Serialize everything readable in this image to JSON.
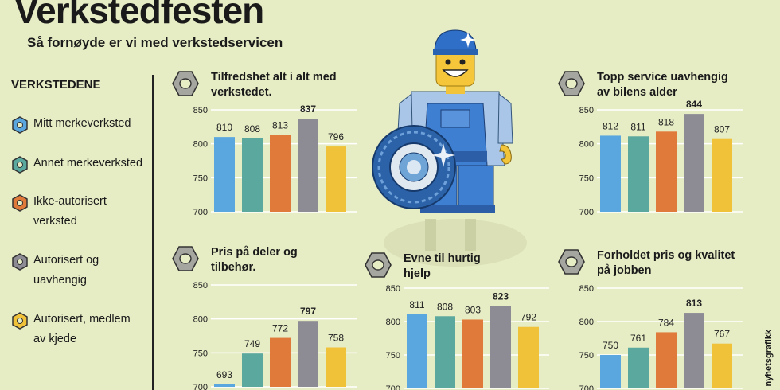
{
  "header": {
    "title": "Verkstedfesten",
    "subtitle": "Så fornøyde er vi med verkstedservicen"
  },
  "legend": {
    "title": "VERKSTEDENE",
    "items": [
      {
        "label": "Mitt merkeverksted",
        "color": "#5aa7e0"
      },
      {
        "label": "Annet merkeverksted",
        "color": "#5aa89e"
      },
      {
        "label": "Ikke-autorisert verksted",
        "color": "#e07a3a"
      },
      {
        "label": "Autorisert og uavhengig",
        "color": "#8d8b94"
      },
      {
        "label": "Autorisert, medlem av kjede",
        "color": "#f0c23a"
      }
    ]
  },
  "credit": "nyhetsgrafikk",
  "chart_data": [
    {
      "type": "bar",
      "title": "Tilfredshet alt i alt med verkstedet.",
      "categories": [
        "Mitt merkeverksted",
        "Annet merkeverksted",
        "Ikke-autorisert verksted",
        "Autorisert og uavhengig",
        "Autorisert, medlem av kjede"
      ],
      "values": [
        810,
        808,
        813,
        837,
        796
      ],
      "ylim": [
        700,
        850
      ],
      "yticks": [
        700,
        750,
        800,
        850
      ],
      "highlight": 3
    },
    {
      "type": "bar",
      "title": "Topp service uavhengig av bilens alder",
      "categories": [
        "Mitt merkeverksted",
        "Annet merkeverksted",
        "Ikke-autorisert verksted",
        "Autorisert og uavhengig",
        "Autorisert, medlem av kjede"
      ],
      "values": [
        812,
        811,
        818,
        844,
        807
      ],
      "ylim": [
        700,
        850
      ],
      "yticks": [
        700,
        750,
        800,
        850
      ],
      "highlight": 3
    },
    {
      "type": "bar",
      "title": "Pris på deler og tilbehør.",
      "categories": [
        "Mitt merkeverksted",
        "Annet merkeverksted",
        "Ikke-autorisert verksted",
        "Autorisert og uavhengig",
        "Autorisert, medlem av kjede"
      ],
      "values": [
        693,
        749,
        772,
        797,
        758
      ],
      "ylim": [
        700,
        850
      ],
      "yticks": [
        700,
        750,
        800,
        850
      ],
      "highlight": 3
    },
    {
      "type": "bar",
      "title": "Evne til hurtig hjelp",
      "categories": [
        "Mitt merkeverksted",
        "Annet merkeverksted",
        "Ikke-autorisert verksted",
        "Autorisert og uavhengig",
        "Autorisert, medlem av kjede"
      ],
      "values": [
        811,
        808,
        803,
        823,
        792
      ],
      "ylim": [
        700,
        850
      ],
      "yticks": [
        700,
        750,
        800,
        850
      ],
      "highlight": 3
    },
    {
      "type": "bar",
      "title": "Forholdet pris og kvalitet på jobben",
      "categories": [
        "Mitt merkeverksted",
        "Annet merkeverksted",
        "Ikke-autorisert verksted",
        "Autorisert og uavhengig",
        "Autorisert, medlem av kjede"
      ],
      "values": [
        750,
        761,
        784,
        813,
        767
      ],
      "ylim": [
        700,
        850
      ],
      "yticks": [
        700,
        750,
        800,
        850
      ],
      "highlight": 3
    }
  ]
}
